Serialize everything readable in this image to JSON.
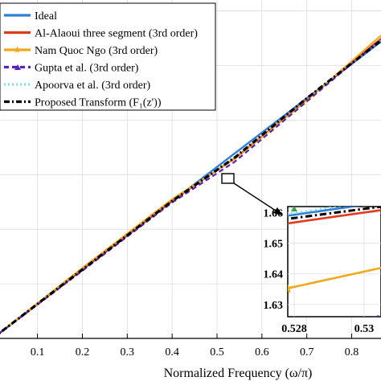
{
  "chart_data": {
    "type": "line",
    "xlabel": "Normalized Frequency (ω/π)",
    "ylabel": "",
    "title": "",
    "xlim": [
      0.0,
      0.95
    ],
    "ylim": [
      0.0,
      3.1
    ],
    "x_ticks": [
      "0.1",
      "0.2",
      "0.3",
      "0.4",
      "0.5",
      "0.6",
      "0.7",
      "0.8"
    ],
    "legend_position": "top-left",
    "series": [
      {
        "name": "Ideal",
        "color": "#2f7fd8",
        "style": "solid",
        "marker": "none",
        "x": [
          0.0,
          0.95
        ],
        "y": [
          0.0,
          2.985
        ]
      },
      {
        "name": "Al-Alaoui three segment (3rd order)",
        "color": "#e03a1e",
        "style": "solid",
        "marker": "none",
        "x": [
          0.0,
          0.2,
          0.4,
          0.54,
          0.7,
          0.85,
          0.95
        ],
        "y": [
          0.0,
          0.632,
          1.262,
          1.652,
          2.185,
          2.695,
          3.02
        ]
      },
      {
        "name": "Nam Quoc Ngo (3rd order)",
        "color": "#f0a81c",
        "style": "solid",
        "marker": "star",
        "x": [
          0.0,
          0.2,
          0.4,
          0.54,
          0.7,
          0.85,
          0.95
        ],
        "y": [
          0.0,
          0.645,
          1.275,
          1.645,
          2.18,
          2.72,
          3.07
        ]
      },
      {
        "name": "Gupta et al. (3rd order)",
        "color": "#5b22b8",
        "style": "dashed",
        "marker": "triangle",
        "x": [
          0.0,
          0.2,
          0.4,
          0.54,
          0.7,
          0.85,
          0.95
        ],
        "y": [
          0.0,
          0.62,
          1.245,
          1.62,
          2.17,
          2.69,
          2.99
        ]
      },
      {
        "name": "Apoorva et al. (3rd order)",
        "color": "#7fe0f2",
        "style": "dotted",
        "marker": "none",
        "x": [
          0.0,
          0.2,
          0.4,
          0.54,
          0.7,
          0.85,
          0.95
        ],
        "y": [
          0.0,
          0.63,
          1.258,
          1.66,
          2.2,
          2.68,
          2.99
        ]
      },
      {
        "name": "Proposed Transform (F₁(z'))",
        "color": "#000000",
        "style": "dash-dot",
        "marker": "none",
        "x": [
          0.0,
          0.2,
          0.4,
          0.54,
          0.7,
          0.85,
          0.95
        ],
        "y": [
          0.0,
          0.63,
          1.258,
          1.658,
          2.2,
          2.68,
          2.985
        ]
      }
    ],
    "inset": {
      "xlim": [
        0.5275,
        0.5315
      ],
      "ylim": [
        1.626,
        1.662
      ],
      "x_ticks": [
        "0.528",
        "0.53"
      ],
      "y_ticks": [
        "1.63",
        "1.64",
        "1.65",
        "1.66"
      ]
    }
  }
}
